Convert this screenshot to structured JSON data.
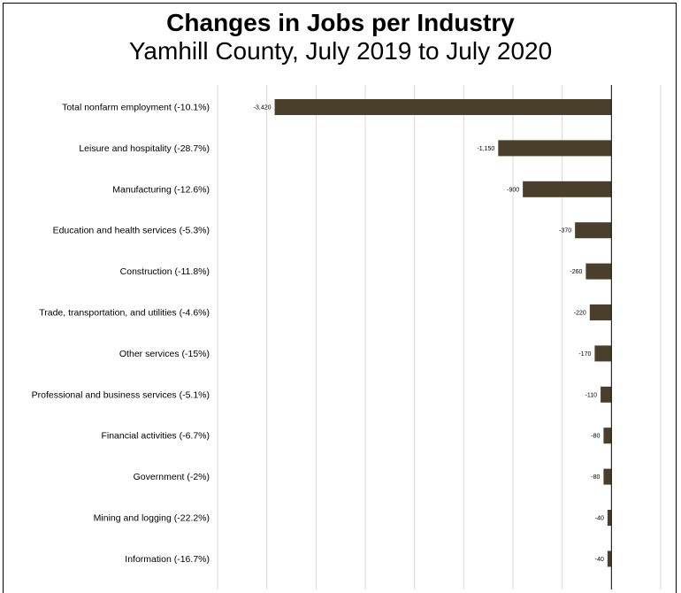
{
  "colors": {
    "bar": "#4a3f2a",
    "grid": "#d9d9d9",
    "axis": "#000000"
  },
  "chart_data": {
    "type": "bar",
    "orientation": "horizontal",
    "title": "Changes in Jobs per Industry",
    "subtitle": "Yamhill County, July 2019 to July 2020",
    "categories": [
      "Total nonfarm employment (-10.1%)",
      "Leisure and hospitality (-28.7%)",
      "Manufacturing (-12.6%)",
      "Education and health services (-5.3%)",
      "Construction (-11.8%)",
      "Trade, transportation, and utilities (-4.6%)",
      "Other services (-15%)",
      "Professional and business services (-5.1%)",
      "Financial activities (-6.7%)",
      "Government (-2%)",
      "Mining and logging (-22.2%)",
      "Information (-16.7%)"
    ],
    "values": [
      -3420,
      -1150,
      -900,
      -370,
      -260,
      -220,
      -170,
      -110,
      -80,
      -80,
      -40,
      -40
    ],
    "value_labels": [
      "-3,420",
      "-1,150",
      "-900",
      "-370",
      "-260",
      "-220",
      "-170",
      "-110",
      "-80",
      "-80",
      "-40",
      "-40"
    ],
    "xlim": [
      -4000,
      500
    ],
    "grid_step": 500,
    "grid": true,
    "legend": "none"
  }
}
